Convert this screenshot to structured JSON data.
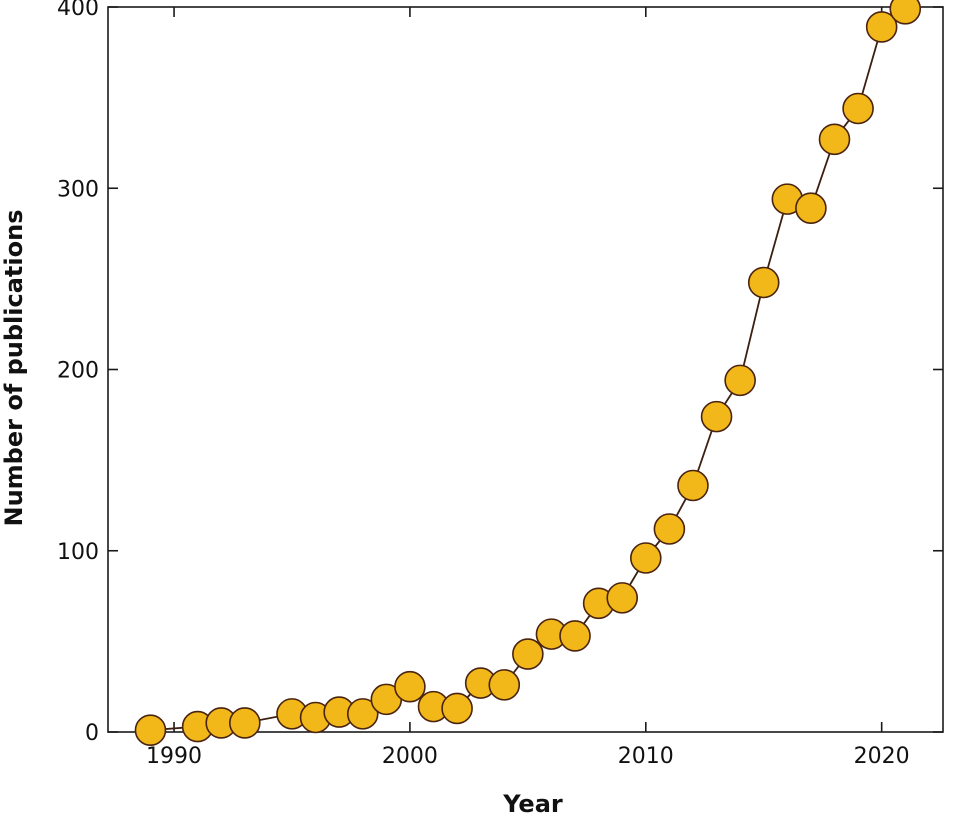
{
  "chart_data": {
    "type": "line",
    "title": "",
    "xlabel": "Year",
    "ylabel": "Number of publications",
    "xlim": [
      1987.2,
      2022.6
    ],
    "ylim": [
      0,
      400
    ],
    "xticks": [
      1990,
      2000,
      2010,
      2020
    ],
    "yticks": [
      0,
      100,
      200,
      300,
      400
    ],
    "grid": false,
    "legend": "none",
    "marker_color": "#f2b719",
    "marker_edge_color": "#4a2410",
    "line_color": "#3d1f12",
    "series": [
      {
        "x": [
          1989,
          1991,
          1992,
          1993,
          1995,
          1996,
          1997,
          1998,
          1999,
          2000,
          2001,
          2002,
          2003,
          2004,
          2005,
          2006,
          2007,
          2008,
          2009,
          2010,
          2011,
          2012,
          2013,
          2014,
          2015,
          2016,
          2017,
          2018,
          2019,
          2020,
          2021
        ],
        "y": [
          1,
          3,
          5,
          5,
          10,
          8,
          11,
          10,
          18,
          25,
          14,
          13,
          27,
          26,
          43,
          54,
          53,
          71,
          74,
          96,
          112,
          136,
          174,
          194,
          248,
          294,
          289,
          327,
          344,
          389,
          399
        ]
      }
    ]
  }
}
